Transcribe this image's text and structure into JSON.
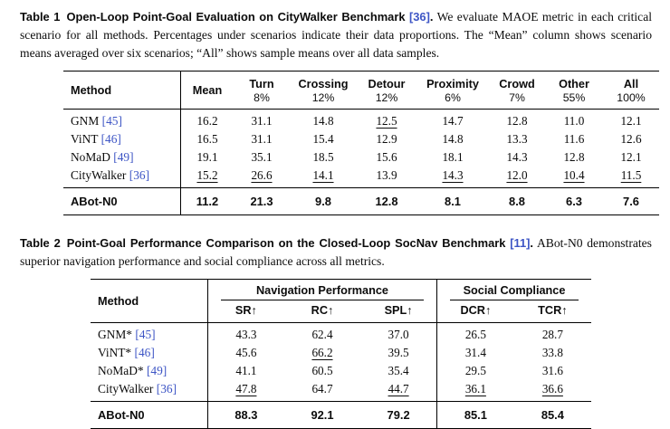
{
  "colors": {
    "link": "#3d55c5",
    "text": "#0c0c0c",
    "background": "#ffffff"
  },
  "table1": {
    "caption": {
      "label": "Table 1",
      "title": "Open-Loop Point-Goal Evaluation on CityWalker Benchmark",
      "cite": "[36]",
      "period": ".",
      "text": "We evaluate MAOE metric in each critical scenario for all methods. Percentages under scenarios indicate their data proportions. The “Mean” column shows scenario means averaged over six scenarios; “All” shows sample means over all data samples."
    },
    "header": {
      "method": "Method",
      "columns": [
        {
          "name": "Mean",
          "pct": ""
        },
        {
          "name": "Turn",
          "pct": "8%"
        },
        {
          "name": "Crossing",
          "pct": "12%"
        },
        {
          "name": "Detour",
          "pct": "12%"
        },
        {
          "name": "Proximity",
          "pct": "6%"
        },
        {
          "name": "Crowd",
          "pct": "7%"
        },
        {
          "name": "Other",
          "pct": "55%"
        },
        {
          "name": "All",
          "pct": "100%"
        }
      ]
    },
    "rows": [
      {
        "method": "GNM",
        "cite": "[45]",
        "values": [
          "16.2",
          "31.1",
          "14.8",
          "12.5",
          "14.7",
          "12.8",
          "11.0",
          "12.1"
        ],
        "underlined": [
          3
        ]
      },
      {
        "method": "ViNT",
        "cite": "[46]",
        "values": [
          "16.5",
          "31.1",
          "15.4",
          "12.9",
          "14.8",
          "13.3",
          "11.6",
          "12.6"
        ],
        "underlined": []
      },
      {
        "method": "NoMaD",
        "cite": "[49]",
        "values": [
          "19.1",
          "35.1",
          "18.5",
          "15.6",
          "18.1",
          "14.3",
          "12.8",
          "12.1"
        ],
        "underlined": []
      },
      {
        "method": "CityWalker",
        "cite": "[36]",
        "values": [
          "15.2",
          "26.6",
          "14.1",
          "13.9",
          "14.3",
          "12.0",
          "10.4",
          "11.5"
        ],
        "underlined": [
          0,
          1,
          2,
          4,
          5,
          6,
          7
        ]
      }
    ],
    "highlight_row": {
      "method": "ABot-N0",
      "values": [
        "11.2",
        "21.3",
        "9.8",
        "12.8",
        "8.1",
        "8.8",
        "6.3",
        "7.6"
      ]
    }
  },
  "table2": {
    "caption": {
      "label": "Table 2",
      "title": "Point-Goal Performance Comparison on the Closed-Loop SocNav Benchmark",
      "cite": "[11]",
      "period": ".",
      "text": "ABot-N0 demonstrates superior navigation performance and social compliance across all metrics."
    },
    "header": {
      "method": "Method",
      "groups": [
        {
          "name": "Navigation Performance",
          "cols": [
            "SR↑",
            "RC↑",
            "SPL↑"
          ]
        },
        {
          "name": "Social Compliance",
          "cols": [
            "DCR↑",
            "TCR↑"
          ]
        }
      ]
    },
    "rows": [
      {
        "method": "GNM*",
        "cite": "[45]",
        "values": [
          "43.3",
          "62.4",
          "37.0",
          "26.5",
          "28.7"
        ],
        "underlined": []
      },
      {
        "method": "ViNT*",
        "cite": "[46]",
        "values": [
          "45.6",
          "66.2",
          "39.5",
          "31.4",
          "33.8"
        ],
        "underlined": [
          1
        ]
      },
      {
        "method": "NoMaD*",
        "cite": "[49]",
        "values": [
          "41.1",
          "60.5",
          "35.4",
          "29.5",
          "31.6"
        ],
        "underlined": []
      },
      {
        "method": "CityWalker",
        "cite": "[36]",
        "values": [
          "47.8",
          "64.7",
          "44.7",
          "36.1",
          "36.6"
        ],
        "underlined": [
          0,
          2,
          3,
          4
        ]
      }
    ],
    "highlight_row": {
      "method": "ABot-N0",
      "values": [
        "88.3",
        "92.1",
        "79.2",
        "85.1",
        "85.4"
      ]
    }
  }
}
